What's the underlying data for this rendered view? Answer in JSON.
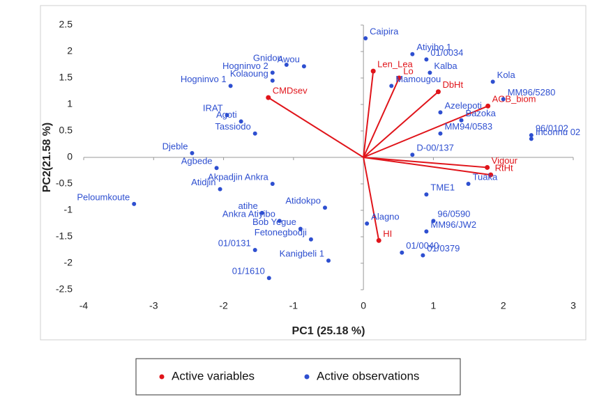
{
  "chart_data": {
    "type": "biplot",
    "x_label": "PC1 (25.18 %)",
    "y_label": "PC2(21.58 %)",
    "xlim": [
      -4,
      3
    ],
    "xticks": [
      -4,
      -3,
      -2,
      -1,
      0,
      1,
      2,
      3
    ],
    "ylim": [
      -2.5,
      2.5
    ],
    "yticks": [
      -2.5,
      -2,
      -1.5,
      -1,
      -0.5,
      0,
      0.5,
      1,
      1.5,
      2,
      2.5
    ],
    "series": [
      {
        "name": "Active variables",
        "color": "#e0141a",
        "vectors": true,
        "labels": [
          "Len_Lea",
          "Lo",
          "DbHt",
          "AGB_biom",
          "Vigour",
          "RtHt",
          "HI",
          "CMDsev"
        ],
        "x": [
          0.14,
          0.51,
          1.07,
          1.78,
          1.77,
          1.82,
          0.22,
          -1.36
        ],
        "y": [
          1.63,
          1.5,
          1.24,
          0.97,
          -0.19,
          -0.33,
          -1.57,
          1.13
        ]
      },
      {
        "name": "Active observations",
        "color": "#2e4fd0",
        "vectors": false,
        "labels": [
          "Caipira",
          "Atiyibo 1",
          "01/0034",
          "Kalba",
          "Mamougou",
          "Kola",
          "MM96/5280",
          "Azelepoti",
          "Bazoka",
          "96/0102",
          "Inconnu 02",
          "MM94/0583",
          "D-00/137",
          "TME1",
          "Tuaka",
          "96/0590",
          "MM96/JW2",
          "Alagno",
          "01/0040",
          "01/0379",
          "Peloumkoute",
          "Djeble",
          "Tassiodo",
          "Agoti",
          "IRAT",
          "Gnidou",
          "Awou",
          "Hogninvo 2",
          "Hogninvo 1",
          "Kolaoung",
          "Atidokpo",
          "atihe",
          "Ankra Atiyibo",
          "Bob Yegue",
          "Agbede",
          "Atidjin",
          "Akpadjin Ankra",
          "Fetonegbodji",
          "01/0131",
          "Kanigbeli 1",
          "01/1610"
        ],
        "x": [
          0.03,
          0.7,
          0.9,
          0.95,
          0.4,
          1.85,
          2.0,
          1.1,
          1.4,
          2.4,
          2.4,
          1.1,
          0.7,
          0.9,
          1.5,
          1.0,
          0.9,
          0.05,
          0.55,
          0.85,
          -3.28,
          -2.45,
          -1.55,
          -1.75,
          -1.95,
          -1.1,
          -0.85,
          -1.3,
          -1.9,
          -1.3,
          -0.55,
          -1.45,
          -1.2,
          -0.9,
          -2.1,
          -2.05,
          -1.3,
          -0.75,
          -1.55,
          -0.5,
          -1.35
        ],
        "y": [
          2.25,
          1.95,
          1.85,
          1.6,
          1.35,
          1.43,
          1.1,
          0.85,
          0.7,
          0.42,
          0.35,
          0.45,
          0.05,
          -0.7,
          -0.5,
          -1.2,
          -1.4,
          -1.25,
          -1.8,
          -1.85,
          -0.88,
          0.08,
          0.45,
          0.68,
          0.8,
          1.75,
          1.72,
          1.6,
          1.35,
          1.45,
          -0.95,
          -1.05,
          -1.2,
          -1.35,
          -0.2,
          -0.6,
          -0.5,
          -1.55,
          -1.75,
          -1.95,
          -2.28
        ]
      }
    ]
  }
}
